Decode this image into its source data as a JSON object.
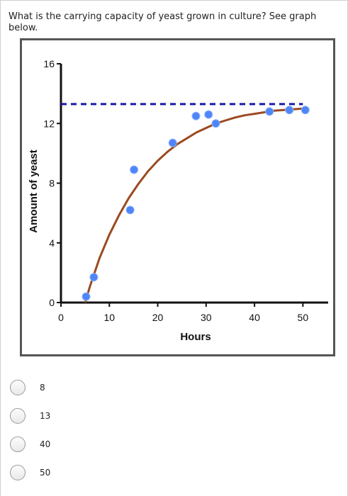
{
  "question": {
    "text": "What is the carrying capacity of yeast grown in culture?  See graph below."
  },
  "chart_data": {
    "type": "scatter",
    "title": "",
    "xlabel": "Hours",
    "ylabel": "Amount of yeast",
    "xlim": [
      0,
      52
    ],
    "ylim": [
      0,
      16
    ],
    "xticks": [
      0,
      10,
      20,
      30,
      40,
      50
    ],
    "yticks": [
      0,
      4,
      8,
      12,
      16
    ],
    "grid": false,
    "points": {
      "x": [
        5.2,
        6.8,
        14.3,
        15.1,
        23.1,
        27.9,
        30.5,
        32.0,
        43.1,
        47.2,
        50.5
      ],
      "y": [
        0.4,
        1.7,
        6.2,
        8.9,
        10.7,
        12.5,
        12.6,
        12.0,
        12.8,
        12.9,
        12.9
      ]
    },
    "fit_curve": {
      "x": [
        5,
        6,
        8,
        10,
        12,
        14,
        16,
        18,
        20,
        22,
        24,
        26,
        28,
        30,
        32,
        34,
        36,
        38,
        40,
        42,
        44,
        46,
        48,
        50
      ],
      "y": [
        0,
        1.1,
        3.0,
        4.55,
        5.85,
        7.0,
        7.95,
        8.8,
        9.5,
        10.1,
        10.6,
        11.0,
        11.4,
        11.7,
        12.0,
        12.2,
        12.4,
        12.55,
        12.65,
        12.75,
        12.85,
        12.9,
        12.95,
        13.0
      ]
    },
    "carrying_capacity_line": {
      "y": 13.3,
      "x_range": [
        0,
        50
      ]
    },
    "colors": {
      "points": "#4f86f7",
      "curve": "#9b4a20",
      "dashed_line": "#1a1aa8"
    }
  },
  "options": [
    {
      "label": "8"
    },
    {
      "label": "13"
    },
    {
      "label": "40"
    },
    {
      "label": "50"
    }
  ]
}
